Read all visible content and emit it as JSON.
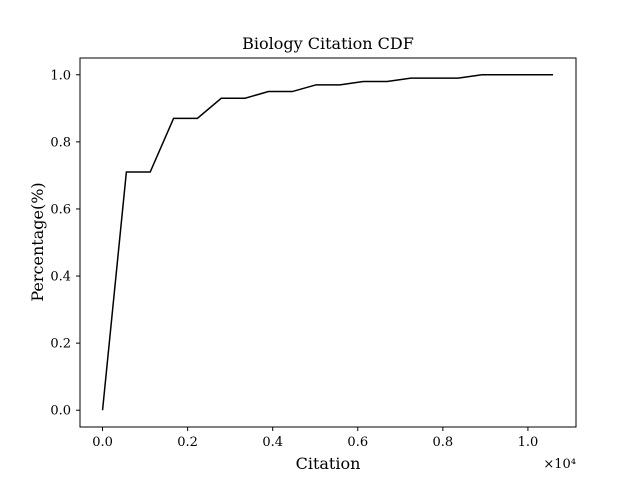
{
  "chart_data": {
    "type": "line",
    "title": "Biology Citation CDF",
    "xlabel": "Citation",
    "ylabel": "Percentage(%)",
    "x_offset_label": "×10⁴",
    "xlim": [
      -0.053,
      1.113
    ],
    "ylim": [
      -0.05,
      1.05
    ],
    "x_ticks": [
      0.0,
      0.2,
      0.4,
      0.6,
      0.8,
      1.0
    ],
    "x_tick_labels": [
      "0.0",
      "0.2",
      "0.4",
      "0.6",
      "0.8",
      "1.0"
    ],
    "y_ticks": [
      0.0,
      0.2,
      0.4,
      0.6,
      0.8,
      1.0
    ],
    "y_tick_labels": [
      "0.0",
      "0.2",
      "0.4",
      "0.6",
      "0.8",
      "1.0"
    ],
    "grid": false,
    "series": [
      {
        "color": "#000000",
        "x": [
          0.0,
          0.056,
          0.112,
          0.167,
          0.223,
          0.279,
          0.335,
          0.39,
          0.446,
          0.502,
          0.558,
          0.613,
          0.669,
          0.725,
          0.781,
          0.836,
          0.892,
          0.948,
          1.004,
          1.059
        ],
        "y": [
          0.0,
          0.71,
          0.71,
          0.87,
          0.87,
          0.93,
          0.93,
          0.95,
          0.95,
          0.97,
          0.97,
          0.98,
          0.98,
          0.99,
          0.99,
          0.99,
          1.0,
          1.0,
          1.0,
          1.0
        ]
      }
    ]
  }
}
